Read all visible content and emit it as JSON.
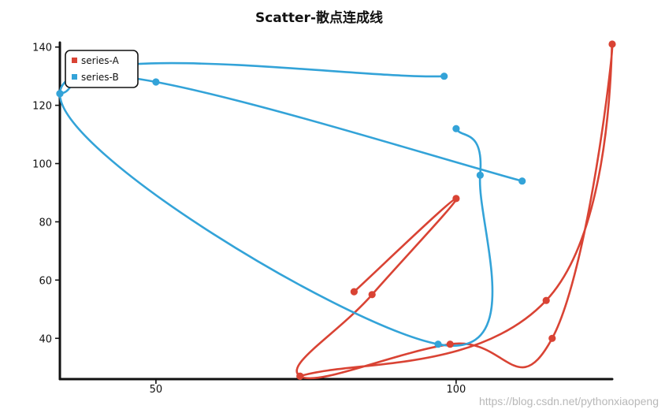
{
  "chart_data": {
    "type": "scatter",
    "title": "Scatter-散点连成线",
    "xlabel": "",
    "ylabel": "",
    "xlim": [
      34,
      126
    ],
    "ylim": [
      26,
      141
    ],
    "x_ticks": [
      50,
      100
    ],
    "y_ticks": [
      40,
      60,
      80,
      100,
      120,
      140
    ],
    "grid": false,
    "legend_position": "top-left",
    "connect_points": true,
    "smooth": true,
    "series": [
      {
        "name": "series-A",
        "color": "#d94334",
        "points": [
          [
            83,
            56
          ],
          [
            100,
            88
          ],
          [
            86,
            55
          ],
          [
            74,
            27
          ],
          [
            99,
            38
          ],
          [
            116,
            40
          ],
          [
            126,
            141
          ],
          [
            115,
            53
          ],
          [
            74,
            27
          ]
        ]
      },
      {
        "name": "series-B",
        "color": "#33a3d8",
        "points": [
          [
            98,
            130
          ],
          [
            34,
            124
          ],
          [
            97,
            38
          ],
          [
            104,
            96
          ],
          [
            100,
            112
          ]
        ]
      },
      {
        "name": "series-B",
        "color": "#33a3d8",
        "points": [
          [
            34,
            124
          ],
          [
            50,
            128
          ],
          [
            111,
            94
          ]
        ]
      }
    ]
  },
  "watermark": "https://blog.csdn.net/pythonxiaopeng"
}
